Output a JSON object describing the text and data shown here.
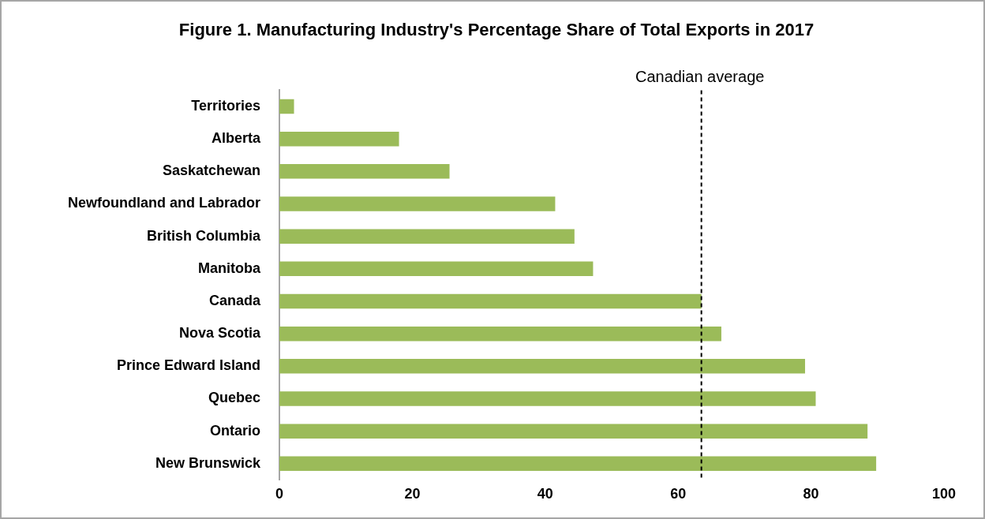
{
  "chart_data": {
    "type": "bar",
    "orientation": "horizontal",
    "title": "Figure 1. Manufacturing Industry's Percentage Share of Total Exports in 2017",
    "categories": [
      "Territories",
      "Alberta",
      "Saskatchewan",
      "Newfoundland and Labrador",
      "British Columbia",
      "Manitoba",
      "Canada",
      "Nova Scotia",
      "Prince Edward Island",
      "Quebec",
      "Ontario",
      "New Brunswick"
    ],
    "values": [
      2.2,
      18,
      25.6,
      41.5,
      44.4,
      47.2,
      63.5,
      66.5,
      79.1,
      80.7,
      88.5,
      89.8
    ],
    "color": "#9bbb59",
    "xlim": [
      0,
      100
    ],
    "xticks": [
      0,
      20,
      40,
      60,
      80,
      100
    ],
    "grid": false,
    "legend": false,
    "ref_lines": [
      {
        "axis": "x",
        "value": 63.5,
        "label": "Canadian average",
        "color": "#000000",
        "line_style": "dashed"
      }
    ]
  }
}
